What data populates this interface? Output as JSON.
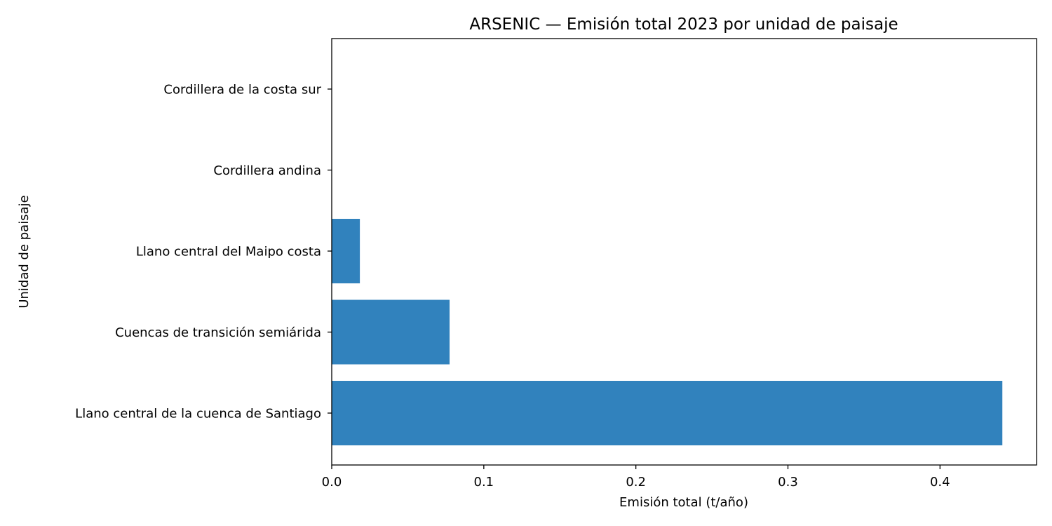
{
  "chart_data": {
    "type": "bar",
    "orientation": "horizontal",
    "title": "ARSENIC — Emisión total 2023 por unidad de paisaje",
    "xlabel": "Emisión total (t/año)",
    "ylabel": "Unidad de paisaje",
    "categories": [
      "Llano central de la cuenca de Santiago",
      "Cuencas de transición semiárida",
      "Llano central del Maipo costa",
      "Cordillera andina",
      "Cordillera de la costa sur"
    ],
    "values": [
      0.441,
      0.0775,
      0.0185,
      0.0,
      0.0
    ],
    "xlim": [
      0,
      0.4635
    ],
    "xticks": [
      "0.0",
      "0.1",
      "0.2",
      "0.3",
      "0.4"
    ],
    "bar_color": "#3182bd",
    "grid": false,
    "legend": "none"
  }
}
